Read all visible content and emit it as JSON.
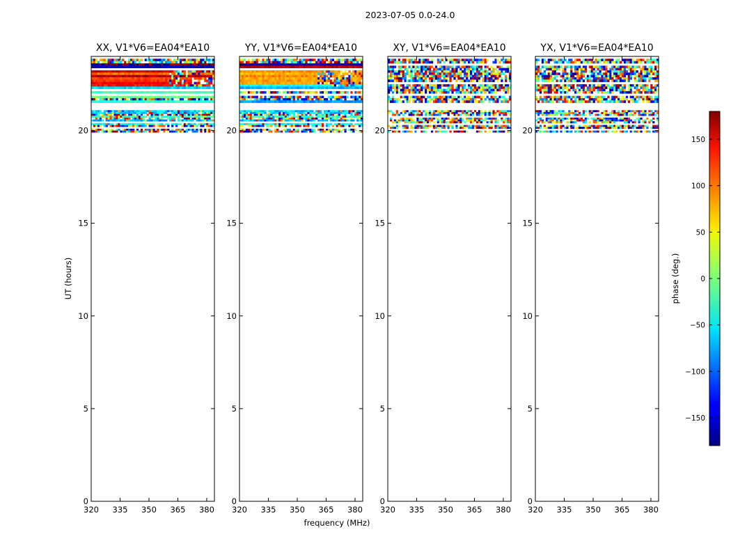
{
  "chart_data": {
    "type": "heatmap",
    "title": "2023-07-05 0.0-24.0",
    "xlabel": "frequency (MHz)",
    "ylabel": "UT (hours)",
    "xlim": [
      320,
      384
    ],
    "ylim": [
      0,
      24
    ],
    "x_ticks": [
      "320",
      "335",
      "350",
      "365",
      "380"
    ],
    "y_ticks": [
      "0",
      "5",
      "10",
      "15",
      "20"
    ],
    "panels": [
      {
        "title": "XX, V1*V6=EA04*EA10",
        "polarization": "XX",
        "data_ut_range": [
          19.9,
          24.0
        ]
      },
      {
        "title": "YY, V1*V6=EA04*EA10",
        "polarization": "YY",
        "data_ut_range": [
          19.9,
          24.0
        ]
      },
      {
        "title": "XY, V1*V6=EA04*EA10",
        "polarization": "XY",
        "data_ut_range": [
          19.9,
          24.0
        ]
      },
      {
        "title": "YX, V1*V6=EA04*EA10",
        "polarization": "YX",
        "data_ut_range": [
          19.9,
          24.0
        ]
      }
    ],
    "colorbar": {
      "label": "phase (deg.)",
      "range": [
        -180,
        180
      ],
      "ticks": [
        "150",
        "100",
        "50",
        "0",
        "−50",
        "−100",
        "−150"
      ],
      "colormap": "jet"
    }
  }
}
